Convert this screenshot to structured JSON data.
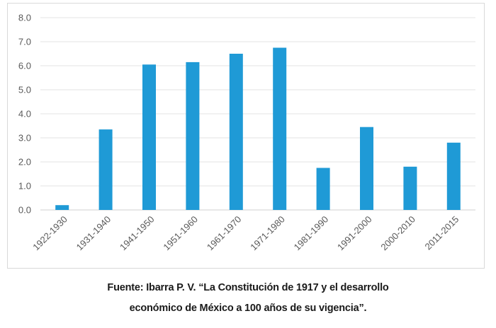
{
  "chart_data": {
    "type": "bar",
    "categories": [
      "1922-1930",
      "1931-1940",
      "1941-1950",
      "1951-1960",
      "1961-1970",
      "1971-1980",
      "1981-1990",
      "1991-2000",
      "2000-2010",
      "2011-2015"
    ],
    "values": [
      0.2,
      3.35,
      6.05,
      6.15,
      6.5,
      6.75,
      1.75,
      3.45,
      1.8,
      2.8
    ],
    "ylim": [
      0,
      8
    ],
    "y_ticks": [
      "0.0",
      "1.0",
      "2.0",
      "3.0",
      "4.0",
      "5.0",
      "6.0",
      "7.0",
      "8.0"
    ],
    "grid": true,
    "bar_color": "#1f9ad6",
    "title": "",
    "xlabel": "",
    "ylabel": ""
  },
  "caption": {
    "line1": "Fuente: Ibarra P. V. “La Constitución de 1917 y el desarrollo",
    "line2": "económico de México a 100 años de su vigencia”."
  }
}
